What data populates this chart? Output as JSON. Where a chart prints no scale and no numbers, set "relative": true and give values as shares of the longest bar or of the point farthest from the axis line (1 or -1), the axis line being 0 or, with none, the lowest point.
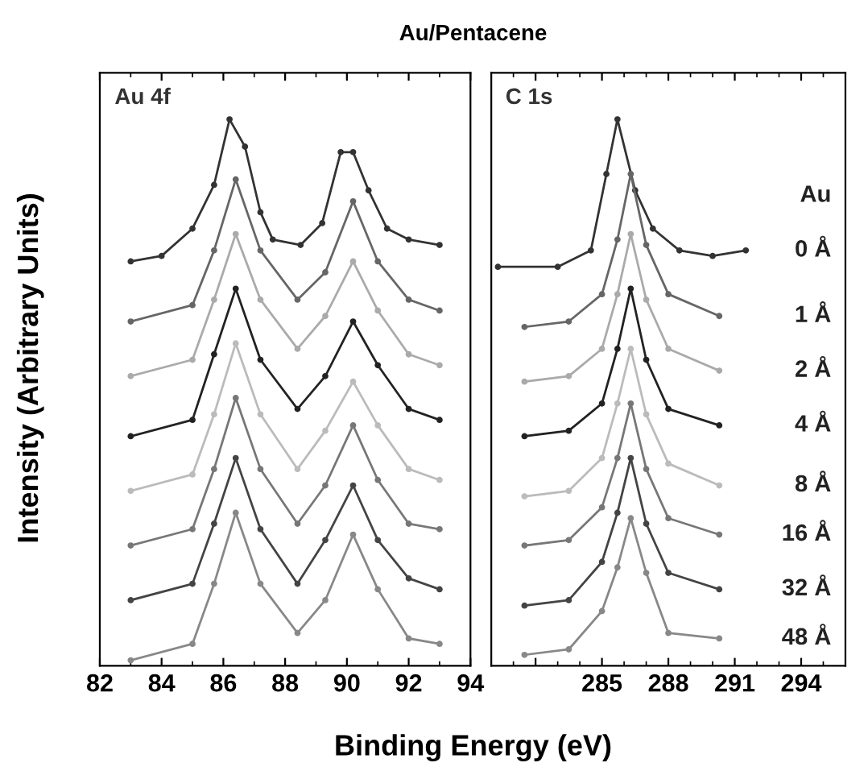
{
  "chart_data": [
    {
      "type": "line",
      "title": "Au/Pentacene",
      "xlabel": "Binding Energy (eV)",
      "ylabel": "Intensity (Arbitrary Units)",
      "relative": true,
      "marker": "circle",
      "line_style": "solid",
      "grid": false,
      "tick_labels": "x",
      "xlim": [
        82,
        94
      ],
      "xticks": [
        82,
        84,
        86,
        88,
        90,
        92,
        94
      ],
      "annotations": [
        "Au 4f"
      ],
      "series": [
        {
          "color": "#333333",
          "x": [
            83,
            84,
            85,
            85.7,
            86.2,
            86.7,
            87.2,
            87.6,
            88.5,
            89.2,
            89.8,
            90.2,
            90.7,
            91.3,
            92,
            93
          ],
          "values": [
            0.74,
            0.75,
            0.8,
            0.88,
            1.0,
            0.95,
            0.83,
            0.78,
            0.77,
            0.81,
            0.94,
            0.94,
            0.87,
            0.8,
            0.78,
            0.77
          ]
        },
        {
          "color": "#666666",
          "x": [
            83,
            85,
            85.7,
            86.4,
            87.2,
            88.4,
            89.3,
            90.2,
            91,
            92,
            93
          ],
          "values": [
            0.63,
            0.66,
            0.76,
            0.89,
            0.76,
            0.67,
            0.72,
            0.85,
            0.74,
            0.67,
            0.65
          ]
        },
        {
          "color": "#aaaaaa",
          "x": [
            83,
            85,
            85.7,
            86.4,
            87.2,
            88.4,
            89.3,
            90.2,
            91,
            92,
            93
          ],
          "values": [
            0.53,
            0.56,
            0.67,
            0.79,
            0.67,
            0.58,
            0.64,
            0.74,
            0.65,
            0.57,
            0.55
          ]
        },
        {
          "color": "#222222",
          "x": [
            83,
            85,
            85.7,
            86.4,
            87.2,
            88.4,
            89.3,
            90.2,
            91,
            92,
            93
          ],
          "values": [
            0.42,
            0.45,
            0.57,
            0.69,
            0.56,
            0.47,
            0.53,
            0.63,
            0.55,
            0.47,
            0.45
          ]
        },
        {
          "color": "#bbbbbb",
          "x": [
            83,
            85,
            85.7,
            86.4,
            87.2,
            88.4,
            89.3,
            90.2,
            91,
            92,
            93
          ],
          "values": [
            0.32,
            0.35,
            0.46,
            0.59,
            0.46,
            0.36,
            0.43,
            0.52,
            0.44,
            0.36,
            0.34
          ]
        },
        {
          "color": "#777777",
          "x": [
            83,
            85,
            85.7,
            86.4,
            87.2,
            88.4,
            89.3,
            90.2,
            91,
            92,
            93
          ],
          "values": [
            0.22,
            0.25,
            0.36,
            0.49,
            0.36,
            0.26,
            0.33,
            0.44,
            0.34,
            0.26,
            0.25
          ]
        },
        {
          "color": "#444444",
          "x": [
            83,
            85,
            85.7,
            86.4,
            87.2,
            88.4,
            89.3,
            90.2,
            91,
            92,
            93
          ],
          "values": [
            0.12,
            0.15,
            0.26,
            0.38,
            0.25,
            0.15,
            0.23,
            0.33,
            0.23,
            0.16,
            0.14
          ]
        },
        {
          "color": "#888888",
          "x": [
            83,
            85,
            85.7,
            86.4,
            87.2,
            88.4,
            89.3,
            90.2,
            91,
            92,
            93
          ],
          "values": [
            0.01,
            0.04,
            0.15,
            0.28,
            0.15,
            0.06,
            0.12,
            0.24,
            0.14,
            0.05,
            0.04
          ]
        }
      ]
    },
    {
      "type": "line",
      "relative": true,
      "marker": "circle",
      "line_style": "solid",
      "grid": false,
      "tick_labels": "x",
      "xlim": [
        280,
        296
      ],
      "xticks": [
        {
          "value": 282,
          "label": null
        },
        285,
        288,
        291,
        294
      ],
      "annotations": [
        "C 1s"
      ],
      "legend_title": "Au",
      "series": [
        {
          "name": "0 Å",
          "color": "#333333",
          "x": [
            280.3,
            283,
            284.5,
            285.2,
            285.7,
            286.5,
            287.3,
            288.5,
            290,
            291.5
          ],
          "values": [
            0.73,
            0.73,
            0.76,
            0.9,
            1.0,
            0.87,
            0.8,
            0.76,
            0.75,
            0.76
          ]
        },
        {
          "name": "1 Å",
          "color": "#666666",
          "x": [
            281.5,
            283.5,
            285,
            285.7,
            286.3,
            287,
            288,
            290.3
          ],
          "values": [
            0.62,
            0.63,
            0.68,
            0.78,
            0.9,
            0.77,
            0.68,
            0.64
          ]
        },
        {
          "name": "2 Å",
          "color": "#aaaaaa",
          "x": [
            281.5,
            283.5,
            285,
            285.7,
            286.3,
            287,
            288,
            290.3
          ],
          "values": [
            0.52,
            0.53,
            0.58,
            0.68,
            0.79,
            0.67,
            0.58,
            0.54
          ]
        },
        {
          "name": "4 Å",
          "color": "#222222",
          "x": [
            281.5,
            283.5,
            285,
            285.7,
            286.3,
            287,
            288,
            290.3
          ],
          "values": [
            0.42,
            0.43,
            0.48,
            0.58,
            0.69,
            0.56,
            0.47,
            0.44
          ]
        },
        {
          "name": "8 Å",
          "color": "#bbbbbb",
          "x": [
            281.5,
            283.5,
            285,
            285.7,
            286.3,
            287,
            288,
            290.3
          ],
          "values": [
            0.31,
            0.32,
            0.38,
            0.48,
            0.58,
            0.46,
            0.37,
            0.33
          ]
        },
        {
          "name": "16 Å",
          "color": "#777777",
          "x": [
            281.5,
            283.5,
            285,
            285.7,
            286.3,
            287,
            288,
            290.3
          ],
          "values": [
            0.22,
            0.23,
            0.29,
            0.38,
            0.48,
            0.36,
            0.27,
            0.24
          ]
        },
        {
          "name": "32 Å",
          "color": "#444444",
          "x": [
            281.5,
            283.5,
            285,
            285.7,
            286.3,
            287,
            288,
            290.3
          ],
          "values": [
            0.11,
            0.12,
            0.19,
            0.28,
            0.38,
            0.26,
            0.17,
            0.14
          ]
        },
        {
          "name": "48 Å",
          "color": "#888888",
          "x": [
            281.5,
            283.5,
            285,
            285.7,
            286.3,
            287,
            288,
            290.3
          ],
          "values": [
            0.02,
            0.03,
            0.1,
            0.18,
            0.27,
            0.17,
            0.06,
            0.05
          ]
        }
      ]
    }
  ]
}
